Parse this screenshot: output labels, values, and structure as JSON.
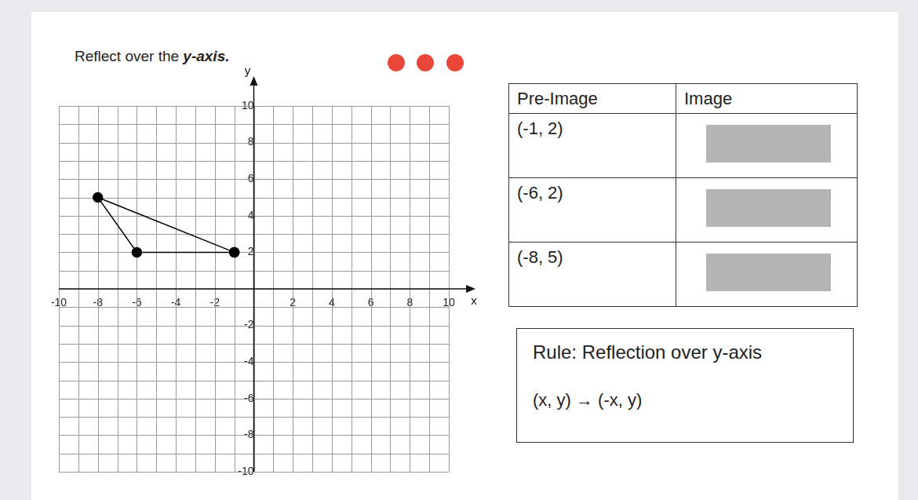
{
  "chart_data": {
    "type": "line",
    "title": "Reflect over the y-axis.",
    "x_label": "x",
    "y_label": "y",
    "x": [
      -1,
      -6,
      -8,
      -1
    ],
    "values": [
      2,
      2,
      5,
      2
    ],
    "color": "#000000",
    "marker": "circle",
    "line_style": "solid",
    "xlim": [
      -10,
      10
    ],
    "ylim": [
      -10,
      10
    ],
    "xticks": [
      -10,
      -8,
      -6,
      -4,
      -2,
      2,
      4,
      6,
      8,
      10
    ],
    "yticks": [
      -10,
      -8,
      -6,
      -4,
      -2,
      2,
      4,
      6,
      8,
      10
    ],
    "grid": true
  },
  "table": {
    "header": [
      "Pre-Image",
      "Image"
    ],
    "rows": [
      [
        "(-1, 2)"
      ],
      [
        "(-6, 2)"
      ],
      [
        "(-8, 5)"
      ]
    ]
  },
  "rule": {
    "title": "Rule: Reflection over y-axis",
    "formula": "(x, y) → (-x, y)"
  }
}
